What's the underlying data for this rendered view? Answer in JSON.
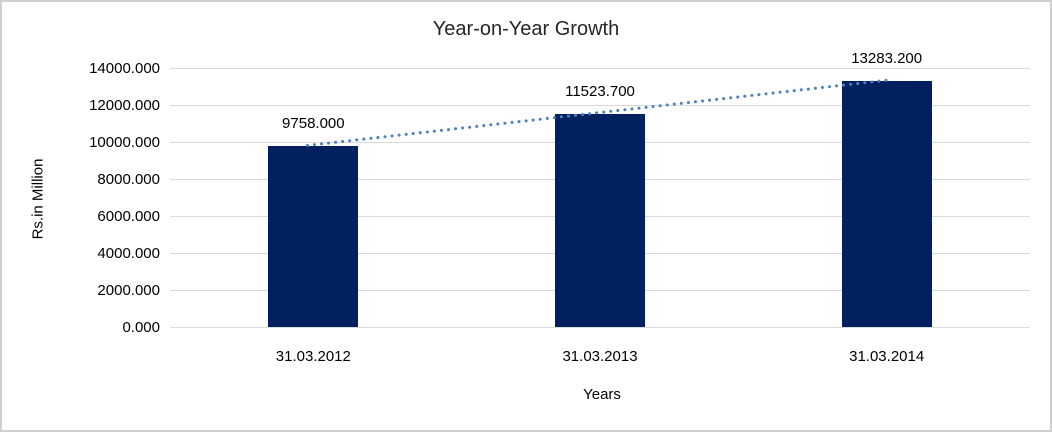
{
  "frame": {
    "border_color": "#cfcfcf",
    "background_color": "#ffffff"
  },
  "chart_data": {
    "type": "bar",
    "title": "Year-on-Year Growth",
    "xlabel": "Years",
    "ylabel": "Rs.in Million",
    "categories": [
      "31.03.2012",
      "31.03.2013",
      "31.03.2014"
    ],
    "values": [
      9758.0,
      11523.7,
      13283.2
    ],
    "value_labels": [
      "9758.000",
      "11523.700",
      "13283.200"
    ],
    "ylim": [
      0,
      14000
    ],
    "ytick_values": [
      0,
      2000,
      4000,
      6000,
      8000,
      10000,
      12000,
      14000
    ],
    "ytick_labels": [
      "0.000",
      "2000.000",
      "4000.000",
      "6000.000",
      "8000.000",
      "10000.000",
      "12000.000",
      "14000.000"
    ],
    "grid": "horizontal",
    "legend": "none",
    "bar_color": "#002060",
    "gridline_color": "#d9d9d9",
    "trendline": {
      "style": "dotted",
      "shape": "linear",
      "color": "#4f81bd"
    }
  }
}
